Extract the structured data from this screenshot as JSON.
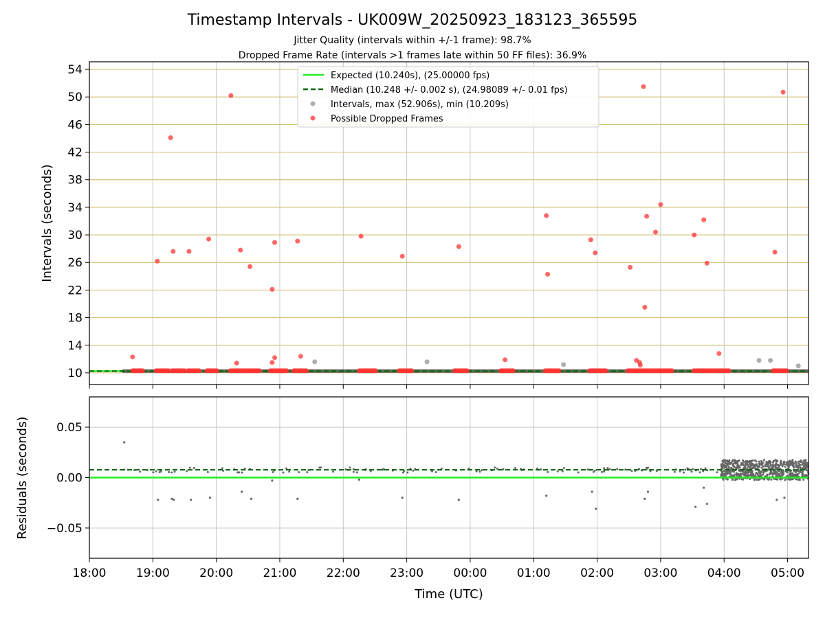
{
  "title": "Timestamp Intervals - UK009W_20250923_183123_365595",
  "subtitle1": "Jitter Quality (intervals within +/-1 frame): 98.7%",
  "subtitle2": "Dropped Frame Rate (intervals >1 frames late within 50 FF files): 36.9%",
  "colors": {
    "expected": "#22ee22",
    "median": "#006400",
    "intervals": "#999999",
    "dropped": "#ff3333",
    "hgrid": "#d4c37a",
    "vgrid": "#c8c8c8",
    "residual": "#666666"
  },
  "chart_data": [
    {
      "type": "scatter",
      "ylabel": "Intervals (seconds)",
      "xlim_hours": [
        18.0,
        29.33
      ],
      "ylim": [
        8.3,
        55.1
      ],
      "yticks": [
        10,
        14,
        18,
        22,
        26,
        30,
        34,
        38,
        42,
        46,
        50,
        54
      ],
      "ytick_labels": [
        "10",
        "14",
        "18",
        "22",
        "26",
        "30",
        "34",
        "38",
        "42",
        "46",
        "50",
        "54"
      ],
      "grid": "horizontal lines at y ticks, vertical at x ticks",
      "legend": {
        "position": "top-center",
        "entries": [
          {
            "key": "expected",
            "label": "Expected (10.240s), (25.00000 fps)",
            "style": "solid-line"
          },
          {
            "key": "median",
            "label": "Median (10.248 +/- 0.002 s), (24.98089 +/- 0.01 fps)",
            "style": "dashed-line"
          },
          {
            "key": "intervals",
            "label": "Intervals, max (52.906s), min (10.209s)",
            "style": "gray-dot"
          },
          {
            "key": "dropped",
            "label": "Possible Dropped Frames",
            "style": "red-dot"
          }
        ]
      },
      "expected_value": 10.24,
      "median_value": 10.248,
      "baseline_start_hour": 18.52,
      "dropped_clusters": [
        [
          18.68,
          18.85
        ],
        [
          19.05,
          19.25
        ],
        [
          19.3,
          19.5
        ],
        [
          19.55,
          19.73
        ],
        [
          19.85,
          20.02
        ],
        [
          20.22,
          20.68
        ],
        [
          20.85,
          21.12
        ],
        [
          21.22,
          21.42
        ],
        [
          22.25,
          22.52
        ],
        [
          22.88,
          23.08
        ],
        [
          23.75,
          23.95
        ],
        [
          24.48,
          24.68
        ],
        [
          25.18,
          25.4
        ],
        [
          25.88,
          26.15
        ],
        [
          26.48,
          27.18
        ],
        [
          27.52,
          28.08
        ],
        [
          28.77,
          29.0
        ]
      ],
      "dropped_points": [
        {
          "t": 18.68,
          "v": 12.3
        },
        {
          "t": 19.07,
          "v": 26.2
        },
        {
          "t": 19.28,
          "v": 44.1
        },
        {
          "t": 19.32,
          "v": 27.6
        },
        {
          "t": 19.57,
          "v": 27.6
        },
        {
          "t": 19.88,
          "v": 29.4
        },
        {
          "t": 20.23,
          "v": 50.2
        },
        {
          "t": 20.32,
          "v": 11.4
        },
        {
          "t": 20.38,
          "v": 27.8
        },
        {
          "t": 20.53,
          "v": 25.4
        },
        {
          "t": 20.88,
          "v": 22.1
        },
        {
          "t": 20.88,
          "v": 11.5
        },
        {
          "t": 20.92,
          "v": 28.9
        },
        {
          "t": 20.92,
          "v": 12.2
        },
        {
          "t": 21.28,
          "v": 29.1
        },
        {
          "t": 21.33,
          "v": 12.4
        },
        {
          "t": 22.28,
          "v": 29.8
        },
        {
          "t": 22.93,
          "v": 26.9
        },
        {
          "t": 23.82,
          "v": 28.3
        },
        {
          "t": 24.55,
          "v": 11.9
        },
        {
          "t": 25.2,
          "v": 32.8
        },
        {
          "t": 25.22,
          "v": 24.3
        },
        {
          "t": 25.9,
          "v": 29.3
        },
        {
          "t": 25.97,
          "v": 27.4
        },
        {
          "t": 26.52,
          "v": 25.3
        },
        {
          "t": 26.62,
          "v": 11.8
        },
        {
          "t": 26.67,
          "v": 11.5
        },
        {
          "t": 26.68,
          "v": 11.1
        },
        {
          "t": 26.73,
          "v": 51.5
        },
        {
          "t": 26.75,
          "v": 19.5
        },
        {
          "t": 26.78,
          "v": 32.7
        },
        {
          "t": 26.92,
          "v": 30.4
        },
        {
          "t": 27.0,
          "v": 34.4
        },
        {
          "t": 27.53,
          "v": 30.0
        },
        {
          "t": 27.68,
          "v": 32.2
        },
        {
          "t": 27.73,
          "v": 25.9
        },
        {
          "t": 27.92,
          "v": 12.8
        },
        {
          "t": 28.8,
          "v": 27.5
        },
        {
          "t": 28.93,
          "v": 50.7
        }
      ],
      "gray_points": [
        {
          "t": 21.55,
          "v": 11.6
        },
        {
          "t": 23.32,
          "v": 11.6
        },
        {
          "t": 25.47,
          "v": 11.2
        },
        {
          "t": 28.55,
          "v": 11.8
        },
        {
          "t": 28.73,
          "v": 11.8
        },
        {
          "t": 29.17,
          "v": 11.0
        }
      ]
    },
    {
      "type": "scatter",
      "xlabel": "Time (UTC)",
      "ylabel": "Residuals (seconds)",
      "xlim_hours": [
        18.0,
        29.33
      ],
      "ylim": [
        -0.08,
        0.08
      ],
      "yticks": [
        -0.05,
        0.0,
        0.05
      ],
      "ytick_labels": [
        "−0.05",
        "0.00",
        "0.05"
      ],
      "xticks": [
        18,
        19,
        20,
        21,
        22,
        23,
        24,
        25,
        26,
        27,
        28,
        29
      ],
      "xtick_labels": [
        "18:00",
        "19:00",
        "20:00",
        "21:00",
        "22:00",
        "23:00",
        "00:00",
        "01:00",
        "02:00",
        "03:00",
        "04:00",
        "05:00"
      ],
      "expected_residual": 0.0,
      "median_residual": 0.0077,
      "residual_clusters": [
        {
          "from": 18.52,
          "to": 29.33,
          "density": 130,
          "center": 0.0075,
          "spread": 0.0025
        },
        {
          "from": 27.95,
          "to": 29.33,
          "density": 700,
          "center": 0.0075,
          "spread": 0.01
        }
      ],
      "residual_outliers": [
        {
          "t": 18.55,
          "v": 0.035
        },
        {
          "t": 19.08,
          "v": -0.022
        },
        {
          "t": 19.3,
          "v": -0.021
        },
        {
          "t": 19.33,
          "v": -0.022
        },
        {
          "t": 19.6,
          "v": -0.022
        },
        {
          "t": 19.9,
          "v": -0.02
        },
        {
          "t": 20.4,
          "v": -0.014
        },
        {
          "t": 20.55,
          "v": -0.021
        },
        {
          "t": 20.88,
          "v": -0.003
        },
        {
          "t": 21.28,
          "v": -0.021
        },
        {
          "t": 22.25,
          "v": -0.002
        },
        {
          "t": 22.93,
          "v": -0.02
        },
        {
          "t": 23.82,
          "v": -0.022
        },
        {
          "t": 25.2,
          "v": -0.018
        },
        {
          "t": 25.92,
          "v": -0.014
        },
        {
          "t": 25.98,
          "v": -0.031
        },
        {
          "t": 26.75,
          "v": -0.021
        },
        {
          "t": 26.8,
          "v": -0.014
        },
        {
          "t": 27.55,
          "v": -0.029
        },
        {
          "t": 27.68,
          "v": -0.01
        },
        {
          "t": 27.73,
          "v": -0.026
        },
        {
          "t": 28.83,
          "v": -0.022
        },
        {
          "t": 28.95,
          "v": -0.02
        }
      ]
    }
  ]
}
